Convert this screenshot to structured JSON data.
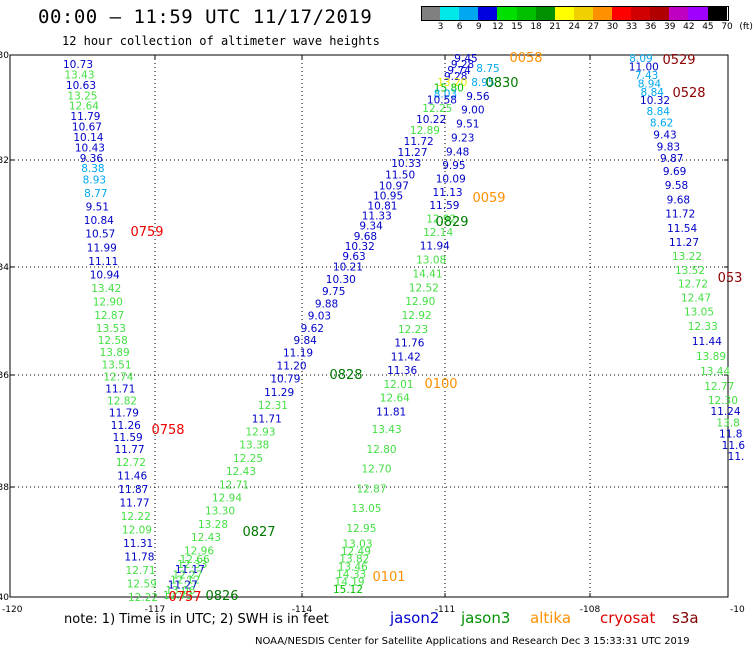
{
  "header": {
    "title": "00:00 – 11:59 UTC 11/17/2019",
    "subtitle": "12 hour collection of altimeter wave heights"
  },
  "colorbar": {
    "colors": [
      "#808080",
      "#00e8e8",
      "#00a8f0",
      "#0000e0",
      "#00e000",
      "#00c000",
      "#009000",
      "#ffff00",
      "#f0d000",
      "#ff9000",
      "#ff0000",
      "#d00000",
      "#b00000",
      "#c000c0",
      "#a000ff",
      "#000000"
    ],
    "labels": [
      "3",
      "6",
      "9",
      "12",
      "15",
      "18",
      "21",
      "24",
      "27",
      "30",
      "33",
      "36",
      "39",
      "42",
      "45",
      "70",
      "(ft)"
    ]
  },
  "axes": {
    "x_ticks": [
      "-117",
      "-114",
      "-111",
      "-108"
    ],
    "x_left_label": "-120",
    "x_right_label": "-10",
    "y_ticks": [
      "-30",
      "-32",
      "-34",
      "-36",
      "-38",
      "-40"
    ]
  },
  "tracks": [
    {
      "name": "track-1",
      "values": [
        "10.73",
        "13.43",
        "10.63",
        "13.25",
        "12.64",
        "11.79",
        "10.67",
        "10.14",
        "10.43",
        "9.36",
        "8.38",
        "8.93",
        "8.77",
        "9.51",
        "10.84",
        "10.57",
        "11.99",
        "11.11",
        "10.94",
        "13.42",
        "12.90",
        "12.87",
        "13.53",
        "12.58",
        "13.89",
        "13.51",
        "12.74",
        "11.71",
        "12.82",
        "11.79",
        "11.26",
        "11.59",
        "11.77",
        "12.72",
        "11.46",
        "11.87",
        "11.77",
        "12.22",
        "12.09",
        "11.31",
        "11.78",
        "12.71",
        "12.59",
        "12.22"
      ]
    },
    {
      "name": "track-2",
      "values": [
        "9.45",
        "9.28",
        "9.74",
        "9.28",
        "13.20",
        "15.80",
        "8.03",
        "10.58",
        "12.25",
        "10.22",
        "12.89",
        "11.72",
        "11.27",
        "10.33",
        "11.50",
        "10.97",
        "10.95",
        "10.81",
        "11.33",
        "9.34",
        "9.68",
        "10.32",
        "9.63",
        "10.21",
        "10.30",
        "9.75",
        "9.88",
        "9.03",
        "9.62",
        "9.84",
        "11.19",
        "11.20",
        "10.79",
        "11.29",
        "12.31",
        "11.71",
        "12.93",
        "13.38",
        "12.25",
        "12.43",
        "12.71",
        "12.94",
        "13.30",
        "13.28",
        "12.43",
        "12.96",
        "12.66",
        "12.33",
        "11.17",
        "12.27",
        "12.12",
        "11.27",
        "13.06",
        "12.73"
      ]
    },
    {
      "name": "track-3",
      "values": [
        "8.75",
        "8.95",
        "9.56",
        "9.00",
        "9.51",
        "9.23",
        "9.48",
        "9.95",
        "10.09",
        "11.13",
        "11.59",
        "12.92",
        "12.14",
        "11.94",
        "13.08",
        "14.41",
        "12.52",
        "12.90",
        "12.92",
        "12.23",
        "11.76",
        "11.42",
        "11.36",
        "12.01",
        "12.64",
        "11.81",
        "13.43",
        "12.80",
        "12.70",
        "12.87",
        "13.05",
        "12.95",
        "13.03",
        "12.49",
        "13.82",
        "13.46",
        "14.33",
        "14.19",
        "15.12"
      ]
    },
    {
      "name": "track-4",
      "values": [
        "8.09",
        "11.00",
        "7.43",
        "8.94",
        "8.84",
        "10.32",
        "8.84",
        "8.62",
        "9.43",
        "9.83",
        "9.87",
        "9.69",
        "9.58",
        "9.68",
        "11.72",
        "11.54",
        "11.27",
        "13.22",
        "13.52",
        "12.72",
        "12.47",
        "13.05",
        "12.33",
        "11.44",
        "13.89",
        "13.44",
        "12.77",
        "12.30",
        "11.24",
        "13.8",
        "11.8",
        "11.6",
        "11."
      ]
    }
  ],
  "time_labels": [
    {
      "text": "0058",
      "sat": "altika"
    },
    {
      "text": "0830",
      "sat": "jason3"
    },
    {
      "text": "0529",
      "sat": "cryosat"
    },
    {
      "text": "0528",
      "sat": "cryosat"
    },
    {
      "text": "0759",
      "sat": "cryosat2"
    },
    {
      "text": "0059",
      "sat": "altika"
    },
    {
      "text": "0829",
      "sat": "jason3"
    },
    {
      "text": "053",
      "sat": "cryosat"
    },
    {
      "text": "0828",
      "sat": "jason3"
    },
    {
      "text": "0100",
      "sat": "altika"
    },
    {
      "text": "0758",
      "sat": "cryosat2"
    },
    {
      "text": "0827",
      "sat": "jason3"
    },
    {
      "text": "0101",
      "sat": "altika"
    },
    {
      "text": "0757",
      "sat": "cryosat2"
    },
    {
      "text": "0826",
      "sat": "jason3"
    }
  ],
  "note": "note: 1) Time is in UTC; 2) SWH is in feet",
  "legend": [
    {
      "label": "jason2",
      "color": "#0000d0"
    },
    {
      "label": "jason3",
      "color": "#009000"
    },
    {
      "label": "altika",
      "color": "#ff9000"
    },
    {
      "label": "cryosat",
      "color": "#e00000"
    },
    {
      "label": "s3a",
      "color": "#800000"
    }
  ],
  "footer": "NOAA/NESDIS Center for Satellite Applications and Research    Dec  3 15:33:31 UTC 2019",
  "colors": {
    "blue": "#0000c8",
    "cyan": "#00a8f0",
    "green": "#00c000",
    "lightgreen": "#44e044",
    "yellow": "#e8e800",
    "orange": "#ff9000",
    "red": "#ee0000",
    "darkred": "#8b0000",
    "darkgreen": "#007a00"
  }
}
